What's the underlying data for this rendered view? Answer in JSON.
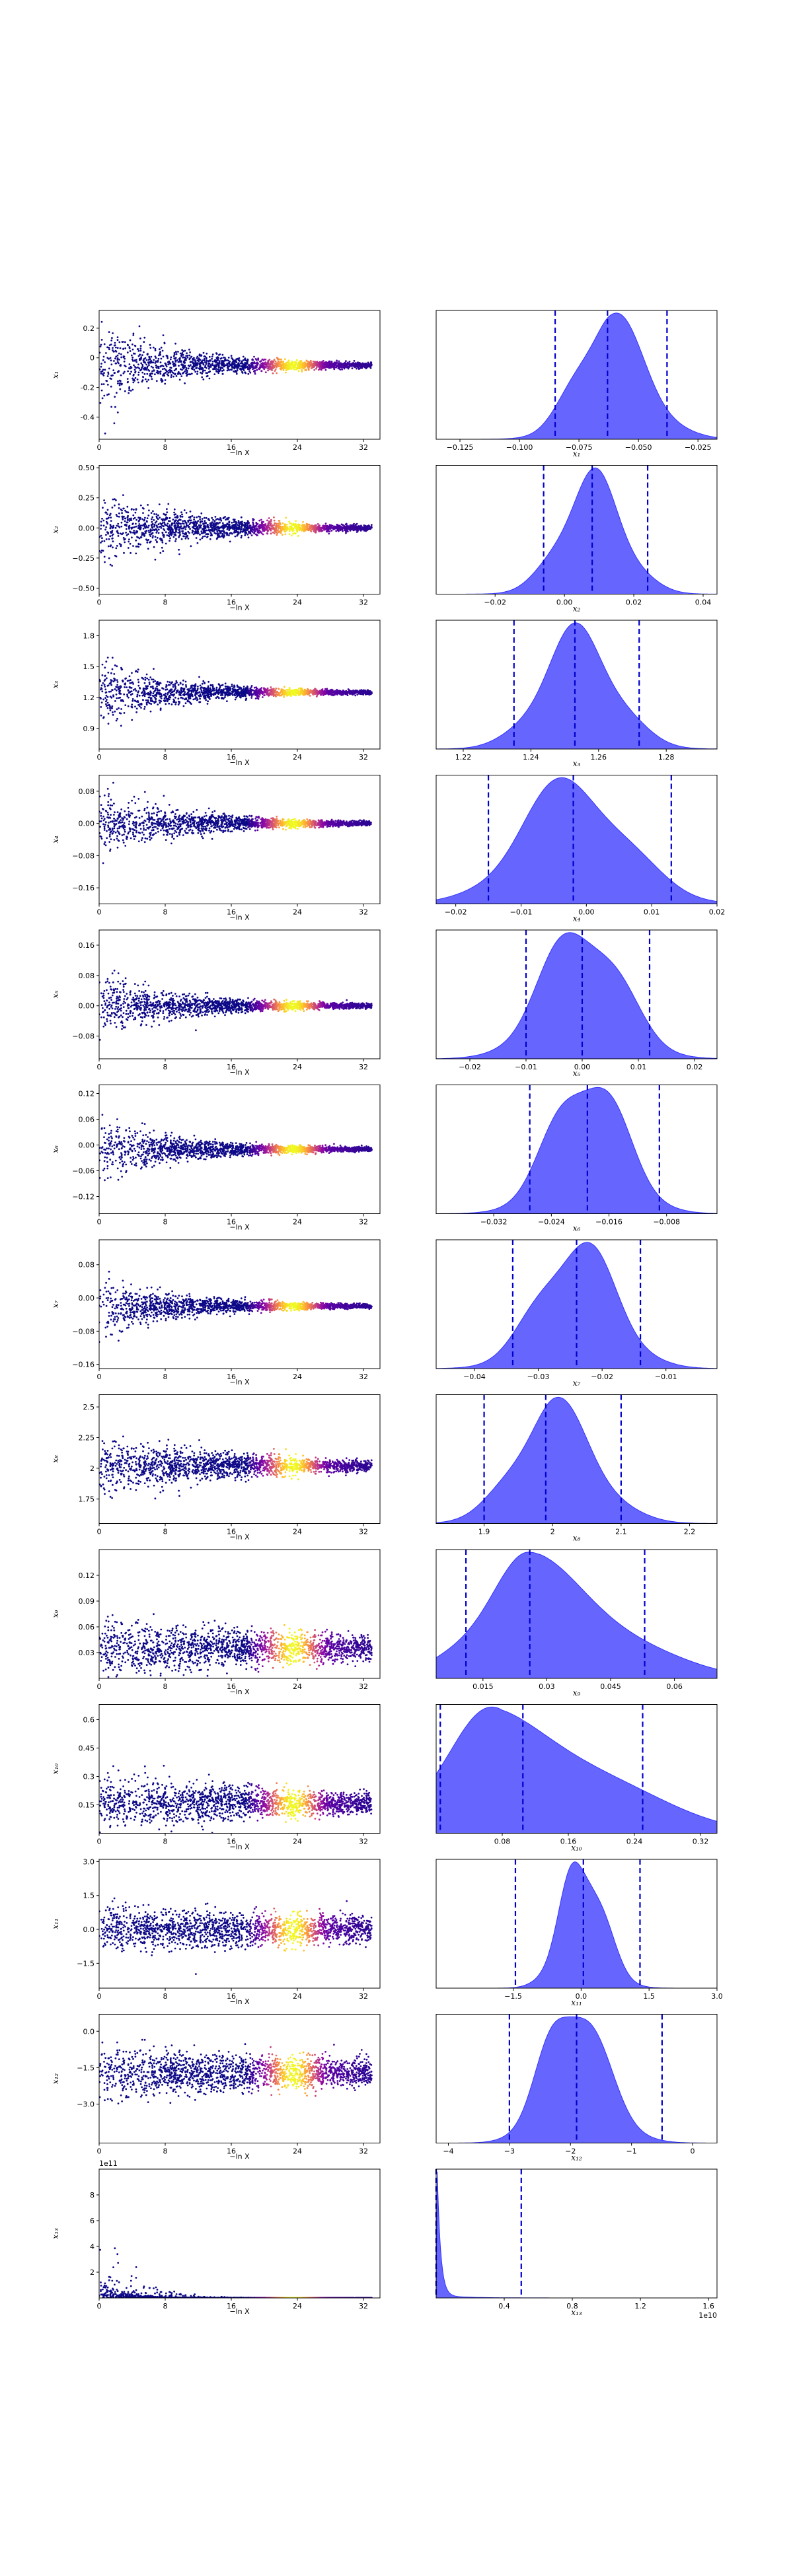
{
  "colors": {
    "kde_fill": "#6666ff",
    "kde_edge": "#3333ff",
    "ci_line": "#0000cc",
    "scatter_colormap": "plasma"
  },
  "trace_xlabel": "−ln X",
  "trace_xticks": [
    0,
    8,
    16,
    24,
    32
  ],
  "chart_data": [
    {
      "type": "scatter",
      "param": "x1",
      "ylabel": "x₁",
      "yticks": [
        -0.4,
        -0.2,
        0.0,
        0.2
      ],
      "ylim": [
        -0.55,
        0.32
      ],
      "spread0": 0.25,
      "center": -0.05,
      "decay": 0.11,
      "kde": {
        "type": "area",
        "xlabel": "x₁",
        "xticks": [
          -0.125,
          -0.1,
          -0.075,
          -0.05,
          -0.025
        ],
        "xtick_labels": [
          "−0.125",
          "−0.100",
          "−0.075",
          "−0.050",
          "−0.025"
        ],
        "xlim": [
          -0.135,
          -0.017
        ],
        "mode": -0.063,
        "width": 0.013,
        "ci": [
          -0.085,
          -0.063,
          -0.038
        ],
        "skew": 0.2
      }
    },
    {
      "type": "scatter",
      "param": "x2",
      "ylabel": "x₂",
      "yticks": [
        -0.5,
        -0.25,
        0.0,
        0.25,
        0.5
      ],
      "ytick_labels": [
        "−0.50",
        "−0.25",
        "0.00",
        "0.25",
        "0.50"
      ],
      "ylim": [
        -0.55,
        0.52
      ],
      "spread0": 0.28,
      "center": 0.0,
      "decay": 0.1,
      "kde": {
        "type": "area",
        "xlabel": "x₂",
        "xticks": [
          -0.02,
          0.0,
          0.02,
          0.04
        ],
        "xtick_labels": [
          "−0.02",
          "0.00",
          "0.02",
          "0.04"
        ],
        "xlim": [
          -0.037,
          0.044
        ],
        "mode": 0.008,
        "width": 0.009,
        "ci": [
          -0.006,
          0.008,
          0.024
        ],
        "skew": 0.0
      }
    },
    {
      "type": "scatter",
      "param": "x3",
      "ylabel": "x₃",
      "yticks": [
        0.9,
        1.2,
        1.5,
        1.8
      ],
      "ylim": [
        0.7,
        1.95
      ],
      "spread0": 0.3,
      "center": 1.25,
      "decay": 0.12,
      "kde": {
        "type": "area",
        "xlabel": "x₃",
        "xticks": [
          1.22,
          1.24,
          1.26,
          1.28
        ],
        "xlim": [
          1.212,
          1.295
        ],
        "mode": 1.254,
        "width": 0.011,
        "ci": [
          1.235,
          1.253,
          1.272
        ],
        "skew": 0.0
      }
    },
    {
      "type": "scatter",
      "param": "x4",
      "ylabel": "x₄",
      "yticks": [
        -0.16,
        -0.08,
        0.0,
        0.08
      ],
      "ytick_labels": [
        "−0.16",
        "−0.08",
        "0.00",
        "0.08"
      ],
      "ylim": [
        -0.2,
        0.12
      ],
      "spread0": 0.07,
      "center": 0.0,
      "decay": 0.1,
      "kde": {
        "type": "area",
        "xlabel": "x₄",
        "xticks": [
          -0.02,
          -0.01,
          0.0,
          0.01,
          0.02
        ],
        "xtick_labels": [
          "−0.02",
          "−0.01",
          "0.00",
          "0.01",
          "0.02"
        ],
        "xlim": [
          -0.023,
          0.02
        ],
        "mode": -0.002,
        "width": 0.008,
        "ci": [
          -0.015,
          -0.002,
          0.013
        ],
        "skew": 0.0
      }
    },
    {
      "type": "scatter",
      "param": "x5",
      "ylabel": "x₅",
      "yticks": [
        -0.08,
        0.0,
        0.08,
        0.16
      ],
      "ytick_labels": [
        "−0.08",
        "0.00",
        "0.08",
        "0.16"
      ],
      "ylim": [
        -0.14,
        0.2
      ],
      "spread0": 0.07,
      "center": 0.0,
      "decay": 0.1,
      "kde": {
        "type": "area",
        "xlabel": "x₅",
        "xticks": [
          -0.02,
          -0.01,
          0.0,
          0.01,
          0.02
        ],
        "xtick_labels": [
          "−0.02",
          "−0.01",
          "0.00",
          "0.01",
          "0.02"
        ],
        "xlim": [
          -0.026,
          0.024
        ],
        "mode": 0.0,
        "width": 0.007,
        "ci": [
          -0.01,
          0.0,
          0.012
        ],
        "skew": 0.0
      }
    },
    {
      "type": "scatter",
      "param": "x6",
      "ylabel": "x₆",
      "yticks": [
        -0.12,
        -0.06,
        0.0,
        0.06,
        0.12
      ],
      "ytick_labels": [
        "−0.12",
        "−0.06",
        "0.00",
        "0.06",
        "0.12"
      ],
      "ylim": [
        -0.16,
        0.14
      ],
      "spread0": 0.06,
      "center": -0.01,
      "decay": 0.1,
      "kde": {
        "type": "area",
        "xlabel": "x₆",
        "xticks": [
          -0.032,
          -0.024,
          -0.016,
          -0.008
        ],
        "xtick_labels": [
          "−0.032",
          "−0.024",
          "−0.016",
          "−0.008"
        ],
        "xlim": [
          -0.04,
          -0.001
        ],
        "mode": -0.019,
        "width": 0.005,
        "ci": [
          -0.027,
          -0.019,
          -0.009
        ],
        "skew": 0.0
      }
    },
    {
      "type": "scatter",
      "param": "x7",
      "ylabel": "x₇",
      "yticks": [
        -0.16,
        -0.08,
        0.0,
        0.08
      ],
      "ytick_labels": [
        "−0.16",
        "−0.08",
        "0.00",
        "0.08"
      ],
      "ylim": [
        -0.17,
        0.14
      ],
      "spread0": 0.06,
      "center": -0.02,
      "decay": 0.1,
      "kde": {
        "type": "area",
        "xlabel": "x₇",
        "xticks": [
          -0.04,
          -0.03,
          -0.02,
          -0.01
        ],
        "xtick_labels": [
          "−0.04",
          "−0.03",
          "−0.02",
          "−0.01"
        ],
        "xlim": [
          -0.046,
          -0.002
        ],
        "mode": -0.024,
        "width": 0.006,
        "ci": [
          -0.034,
          -0.024,
          -0.014
        ],
        "skew": 0.0
      }
    },
    {
      "type": "scatter",
      "param": "x8",
      "ylabel": "x₈",
      "yticks": [
        1.75,
        2.0,
        2.25,
        2.5
      ],
      "ylim": [
        1.55,
        2.6
      ],
      "spread0": 0.22,
      "center": 2.02,
      "decay": 0.06,
      "kde": {
        "type": "area",
        "xlabel": "x₈",
        "xticks": [
          1.9,
          2.0,
          2.1,
          2.2
        ],
        "xlim": [
          1.83,
          2.24
        ],
        "mode": 2.0,
        "width": 0.055,
        "ci": [
          1.9,
          1.99,
          2.1
        ],
        "skew": 0.1
      }
    },
    {
      "type": "scatter",
      "param": "x9",
      "ylabel": "x₉",
      "yticks": [
        0.03,
        0.06,
        0.09,
        0.12
      ],
      "ylim": [
        0.0,
        0.15
      ],
      "spread0": 0.03,
      "center": 0.035,
      "decay": 0.03,
      "kde": {
        "type": "area",
        "xlabel": "x₉",
        "xticks": [
          0.015,
          0.03,
          0.045,
          0.06
        ],
        "xlim": [
          0.004,
          0.07
        ],
        "mode": 0.026,
        "width": 0.012,
        "ci": [
          0.011,
          0.026,
          0.053
        ],
        "skew": 0.6
      }
    },
    {
      "type": "scatter",
      "param": "x10",
      "ylabel": "x₁₀",
      "yticks": [
        0.15,
        0.3,
        0.45,
        0.6
      ],
      "ylim": [
        0.0,
        0.68
      ],
      "spread0": 0.12,
      "center": 0.16,
      "decay": 0.03,
      "kde": {
        "type": "area",
        "xlabel": "x₁₀",
        "xticks": [
          0.08,
          0.16,
          0.24,
          0.32
        ],
        "xlim": [
          0.0,
          0.34
        ],
        "mode": 0.08,
        "width": 0.07,
        "ci": [
          0.005,
          0.105,
          0.25
        ],
        "skew": 0.7
      }
    },
    {
      "type": "scatter",
      "param": "x11",
      "ylabel": "x₁₁",
      "yticks": [
        -1.5,
        0.0,
        1.5,
        3.0
      ],
      "ytick_labels": [
        "−1.5",
        "0.0",
        "1.5",
        "3.0"
      ],
      "ylim": [
        -2.6,
        3.1
      ],
      "spread0": 0.9,
      "center": 0.0,
      "decay": 0.02,
      "kde": {
        "type": "area",
        "xlabel": "x₁₁",
        "xticks": [
          -1.5,
          0.0,
          1.5,
          3.0
        ],
        "xtick_labels": [
          "−1.5",
          "0.0",
          "1.5",
          "3.0"
        ],
        "xlim": [
          -3.2,
          3.0
        ],
        "mode": 0.0,
        "width": 0.45,
        "ci": [
          -1.45,
          0.05,
          1.3
        ],
        "skew": 0.1
      }
    },
    {
      "type": "scatter",
      "param": "x12",
      "ylabel": "x₁₂",
      "yticks": [
        -3.0,
        -1.5,
        0.0
      ],
      "ytick_labels": [
        "−3.0",
        "−1.5",
        "0.0"
      ],
      "ylim": [
        -4.6,
        0.7
      ],
      "spread0": 0.9,
      "center": -1.7,
      "decay": 0.02,
      "kde": {
        "type": "area",
        "xlabel": "x₁₂",
        "xticks": [
          -4,
          -3,
          -2,
          -1,
          0
        ],
        "xtick_labels": [
          "−4",
          "−3",
          "−2",
          "−1",
          "0"
        ],
        "xlim": [
          -4.2,
          0.4
        ],
        "mode": -2.0,
        "width": 0.45,
        "ci": [
          -3.0,
          -1.9,
          -0.5
        ],
        "skew": 0.2
      }
    },
    {
      "type": "scatter",
      "param": "x13",
      "ylabel": "x₁₃",
      "offset": "1e11",
      "yticks": [
        2,
        4,
        6,
        8
      ],
      "ylim": [
        0,
        10
      ],
      "spread0": 1.5,
      "center": 0.0,
      "decay": 0.1,
      "positive": true,
      "kde": {
        "type": "area",
        "xlabel": "x₁₃",
        "offset": "1e10",
        "xticks": [
          0.4,
          0.8,
          1.2,
          1.6
        ],
        "xlim": [
          0.0,
          1.65
        ],
        "mode": 0.005,
        "width": 0.02,
        "ci": [
          0.0,
          0.0,
          0.5
        ],
        "skew": 1.0,
        "spike": true
      }
    }
  ]
}
